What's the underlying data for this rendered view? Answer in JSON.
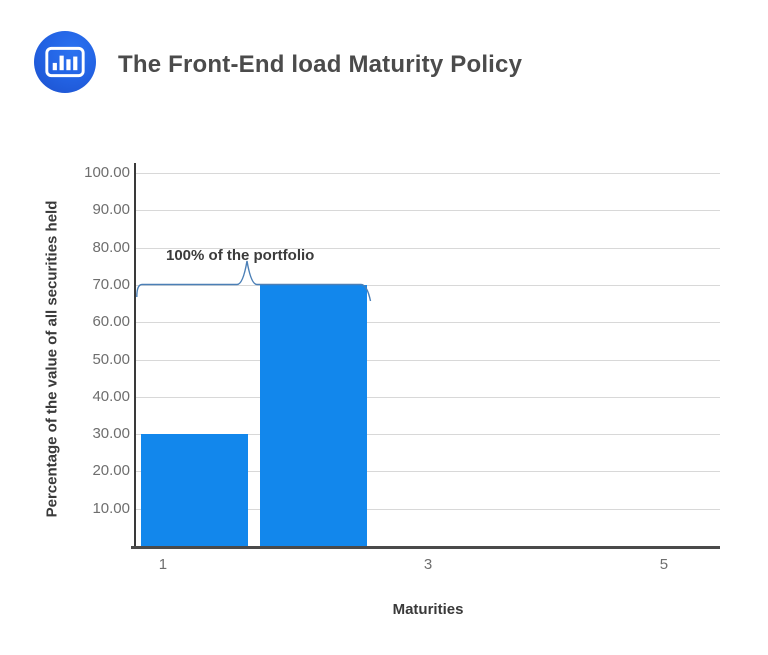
{
  "header": {
    "title": "The Front-End load Maturity Policy",
    "icon": "bar-chart-icon"
  },
  "colors": {
    "bar": "#1287ec",
    "logo_blue": "#2363e4",
    "grid": "#d8d8d8",
    "axis": "#3a3a3a",
    "tick_label": "#6e6e6e",
    "annotation_line": "#4b7fb6",
    "title_text": "#4b4b4b"
  },
  "chart_data": {
    "type": "bar",
    "categories": [
      1,
      2
    ],
    "values": [
      30,
      70
    ],
    "x_tick_labels": [
      "1",
      "3",
      "5"
    ],
    "y_tick_labels": [
      "100.00",
      "90.00",
      "80.00",
      "70.00",
      "60.00",
      "50.00",
      "40.00",
      "30.00",
      "20.00",
      "10.00"
    ],
    "title": "The Front-End load Maturity Policy",
    "xlabel": "Maturities",
    "ylabel": "Percentage of the value of all securities held",
    "ylim": [
      0,
      100
    ],
    "grid": "horizontal",
    "legend": "none",
    "annotation": "100% of the portfolio"
  }
}
